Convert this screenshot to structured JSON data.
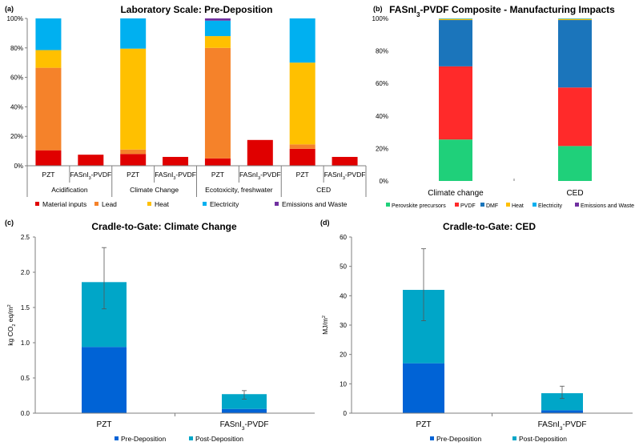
{
  "colors": {
    "material": "#e00000",
    "lead": "#f5822a",
    "heat": "#ffc000",
    "electricity": "#00b0f0",
    "emissions": "#7030a0",
    "perovskite": "#1fd07a",
    "pvdf": "#ff2a2a",
    "dmf": "#1b75bb",
    "pre": "#0063d6",
    "post": "#00a6c8",
    "axis": "#7f7f7f",
    "grid": "#bfbfbf"
  },
  "chart_data": [
    {
      "id": "a",
      "panel_label": "(a)",
      "type": "bar",
      "stacked": true,
      "title": "Laboratory Scale: Pre-Deposition",
      "ylim": [
        0,
        100
      ],
      "y_ticks": [
        "0%",
        "20%",
        "40%",
        "60%",
        "80%",
        "100%"
      ],
      "groups": [
        "Acidification",
        "Climate Change",
        "Ecotoxicity, freshwater",
        "CED"
      ],
      "categories": [
        "PZT",
        "FASnI3-PVDF"
      ],
      "category_labels": [
        {
          "main": "PZT",
          "sub": ""
        },
        {
          "main": "FASnI",
          "sub": "3",
          "tail": "-PVDF"
        }
      ],
      "series_names": [
        "Material inputs",
        "Lead",
        "Heat",
        "Electricity",
        "Emissions and Waste"
      ],
      "series_colors": [
        "#e00000",
        "#f5822a",
        "#ffc000",
        "#00b0f0",
        "#7030a0"
      ],
      "bars": [
        {
          "group": "Acidification",
          "category": "PZT",
          "values": [
            10.5,
            56,
            12,
            21.5,
            0
          ]
        },
        {
          "group": "Acidification",
          "category": "FASnI3-PVDF",
          "values": [
            7.5,
            0,
            0,
            0,
            0
          ]
        },
        {
          "group": "Climate Change",
          "category": "PZT",
          "values": [
            8,
            3,
            68.5,
            20.5,
            0
          ]
        },
        {
          "group": "Climate Change",
          "category": "FASnI3-PVDF",
          "values": [
            6,
            0,
            0,
            0,
            0
          ]
        },
        {
          "group": "Ecotoxicity, freshwater",
          "category": "PZT",
          "values": [
            5,
            75,
            8,
            10.5,
            1.5
          ]
        },
        {
          "group": "Ecotoxicity, freshwater",
          "category": "FASnI3-PVDF",
          "values": [
            17.5,
            0,
            0,
            0,
            0
          ]
        },
        {
          "group": "CED",
          "category": "PZT",
          "values": [
            11.5,
            3,
            55.5,
            30,
            0
          ]
        },
        {
          "group": "CED",
          "category": "FASnI3-PVDF",
          "values": [
            6,
            0,
            0,
            0,
            0
          ]
        }
      ]
    },
    {
      "id": "b",
      "panel_label": "(b)",
      "type": "bar",
      "stacked": true,
      "title_parts": {
        "main": "FASnI",
        "sub": "3",
        "tail": "-PVDF Composite - Manufacturing Impacts"
      },
      "ylim": [
        0,
        100
      ],
      "y_ticks": [
        "0%",
        "20%",
        "40%",
        "60%",
        "80%",
        "100%"
      ],
      "categories": [
        "Climate change",
        "CED"
      ],
      "series_names": [
        "Perovskite precursors",
        "PVDF",
        "DMF",
        "Heat",
        "Electricity",
        "Emissions and Waste"
      ],
      "series_colors": [
        "#1fd07a",
        "#ff2a2a",
        "#1b75bb",
        "#ffc000",
        "#00b0f0",
        "#7030a0"
      ],
      "bars": [
        {
          "category": "Climate change",
          "values": [
            25.5,
            45,
            28.5,
            0.7,
            0.3,
            0
          ]
        },
        {
          "category": "CED",
          "values": [
            21.5,
            36,
            41.5,
            0.7,
            0.3,
            0
          ]
        }
      ]
    },
    {
      "id": "c",
      "panel_label": "(c)",
      "type": "bar",
      "stacked": true,
      "title": "Cradle-to-Gate: Climate Change",
      "ylabel_parts": {
        "main": "kg CO",
        "sub": "2",
        "mid": " eq/m",
        "sup": "2"
      },
      "ylim": [
        0,
        2.5
      ],
      "y_ticks": [
        "0.0",
        "0.5",
        "1.0",
        "1.5",
        "2.0",
        "2.5"
      ],
      "categories": [
        "PZT",
        "FASnI3-PVDF"
      ],
      "category_labels": [
        {
          "main": "PZT",
          "sub": ""
        },
        {
          "main": "FASnI",
          "sub": "3",
          "tail": "-PVDF"
        }
      ],
      "series": [
        {
          "name": "Pre-Deposition",
          "values": [
            0.94,
            0.06
          ]
        },
        {
          "name": "Post-Deposition",
          "values": [
            0.92,
            0.21
          ]
        }
      ],
      "error_bars": [
        {
          "category": "PZT",
          "total": 1.86,
          "low": 1.48,
          "high": 2.35
        },
        {
          "category": "FASnI3-PVDF",
          "total": 0.27,
          "low": 0.2,
          "high": 0.32
        }
      ]
    },
    {
      "id": "d",
      "panel_label": "(d)",
      "type": "bar",
      "stacked": true,
      "title": "Cradle-to-Gate: CED",
      "ylabel_parts": {
        "main": "MJ/m",
        "sup": "2"
      },
      "ylim": [
        0,
        60
      ],
      "y_ticks": [
        "0",
        "10",
        "20",
        "30",
        "40",
        "50",
        "60"
      ],
      "categories": [
        "PZT",
        "FASnI3-PVDF"
      ],
      "category_labels": [
        {
          "main": "PZT",
          "sub": ""
        },
        {
          "main": "FASnI",
          "sub": "3",
          "tail": "-PVDF"
        }
      ],
      "series": [
        {
          "name": "Pre-Deposition",
          "values": [
            17,
            1
          ]
        },
        {
          "name": "Post-Deposition",
          "values": [
            25,
            5.8
          ]
        }
      ],
      "error_bars": [
        {
          "category": "PZT",
          "total": 42,
          "low": 31.5,
          "high": 56
        },
        {
          "category": "FASnI3-PVDF",
          "total": 6.8,
          "low": 5,
          "high": 9.2
        }
      ]
    }
  ]
}
